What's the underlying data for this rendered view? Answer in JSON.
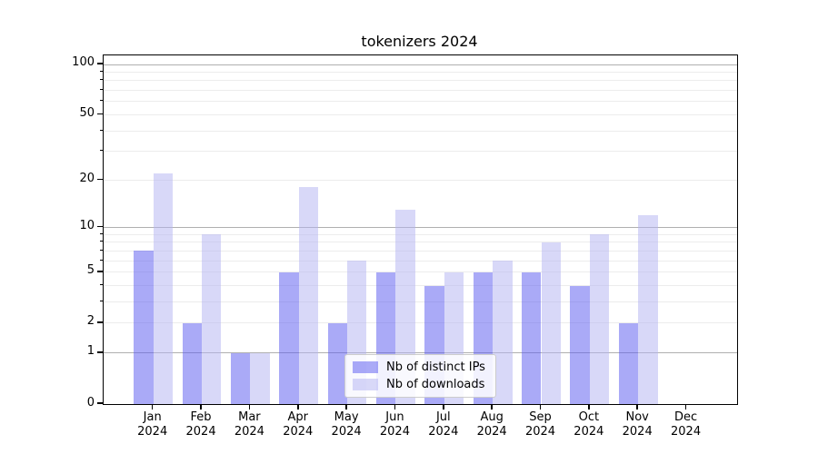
{
  "chart_data": {
    "type": "bar",
    "title": "tokenizers 2024",
    "categories": [
      {
        "month": "Jan",
        "year": "2024"
      },
      {
        "month": "Feb",
        "year": "2024"
      },
      {
        "month": "Mar",
        "year": "2024"
      },
      {
        "month": "Apr",
        "year": "2024"
      },
      {
        "month": "May",
        "year": "2024"
      },
      {
        "month": "Jun",
        "year": "2024"
      },
      {
        "month": "Jul",
        "year": "2024"
      },
      {
        "month": "Aug",
        "year": "2024"
      },
      {
        "month": "Sep",
        "year": "2024"
      },
      {
        "month": "Oct",
        "year": "2024"
      },
      {
        "month": "Nov",
        "year": "2024"
      },
      {
        "month": "Dec",
        "year": "2024"
      }
    ],
    "series": [
      {
        "name": "Nb of distinct IPs",
        "key": "distinct-ips",
        "color": "rgba(85,85,240,0.5)",
        "values": [
          7,
          2,
          1,
          5,
          2,
          5,
          4,
          5,
          5,
          4,
          2,
          0
        ]
      },
      {
        "name": "Nb of downloads",
        "key": "downloads",
        "color": "rgba(177,177,241,0.5)",
        "values": [
          22,
          9,
          1,
          18,
          6,
          13,
          5,
          6,
          8,
          9,
          12,
          0
        ]
      }
    ],
    "y_axis": {
      "scale": "log1p",
      "ticks": [
        0,
        1,
        2,
        5,
        10,
        20,
        50,
        100
      ],
      "major_gridlines": [
        1,
        10,
        100
      ],
      "minor_gridlines": [
        2,
        3,
        4,
        5,
        6,
        7,
        8,
        9,
        20,
        30,
        40,
        50,
        60,
        70,
        80,
        90
      ],
      "range": [
        0,
        113
      ]
    },
    "legend": {
      "position": "lower center"
    },
    "colors": {
      "bar_distinct_ips_blended": "#aaaaf8",
      "bar_downloads_blended": "#d9d9f8",
      "grid_major": "#b0b0b0",
      "grid_minor": "#ececec",
      "spine": "#000000"
    }
  }
}
